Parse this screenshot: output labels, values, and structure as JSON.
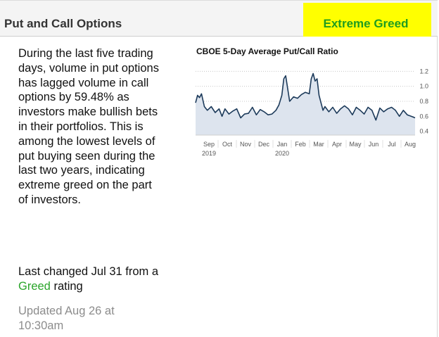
{
  "header": {
    "title": "Put and Call Options",
    "rating": "Extreme Greed",
    "rating_highlight_color": "#ffff00",
    "rating_text_color": "#1f9d1f"
  },
  "description": "During the last five trading days, volume in put options has lagged volume in call options by 59.48% as investors make bullish bets in their portfolios. This is among the lowest levels of put buying seen during the last two years, indicating extreme greed on the part of investors.",
  "last_changed": {
    "prefix": "Last changed Jul 31 from a ",
    "rating_word": "Greed",
    "suffix": " rating"
  },
  "updated": "Updated Aug 26 at 10:30am",
  "chart_data": {
    "type": "area",
    "title": "CBOE 5-Day Average Put/Call Ratio",
    "xlabel": "",
    "ylabel": "",
    "ylim": [
      0.35,
      1.25
    ],
    "yticks": [
      "1.2",
      "1.0",
      "0.8",
      "0.6",
      "0.4"
    ],
    "ytick_values": [
      1.2,
      1.0,
      0.8,
      0.6,
      0.4
    ],
    "xticks": [
      "Sep",
      "Oct",
      "Nov",
      "Dec",
      "Jan",
      "Feb",
      "Mar",
      "Apr",
      "May",
      "Jun",
      "Jul",
      "Aug"
    ],
    "year_labels": [
      {
        "label": "2019",
        "at": "Sep"
      },
      {
        "label": "2020",
        "at": "Jan"
      }
    ],
    "grid": true,
    "line_color": "#1c3a5a",
    "fill_color": "#dde4ee",
    "x": [
      0,
      0.1,
      0.2,
      0.3,
      0.45,
      0.6,
      0.8,
      1.0,
      1.2,
      1.35,
      1.5,
      1.7,
      1.9,
      2.1,
      2.3,
      2.5,
      2.7,
      2.9,
      3.1,
      3.3,
      3.5,
      3.7,
      3.9,
      4.1,
      4.25,
      4.4,
      4.5,
      4.6,
      4.8,
      5.0,
      5.2,
      5.4,
      5.6,
      5.8,
      5.9,
      6.0,
      6.1,
      6.2,
      6.3,
      6.5,
      6.6,
      6.8,
      7.0,
      7.2,
      7.4,
      7.6,
      7.8,
      8.0,
      8.2,
      8.4,
      8.6,
      8.8,
      9.0,
      9.2,
      9.4,
      9.6,
      9.8,
      10.0,
      10.2,
      10.4,
      10.6,
      10.8,
      11.0,
      11.2
    ],
    "values": [
      0.78,
      0.88,
      0.85,
      0.9,
      0.73,
      0.68,
      0.73,
      0.65,
      0.7,
      0.6,
      0.7,
      0.63,
      0.67,
      0.7,
      0.58,
      0.63,
      0.64,
      0.72,
      0.62,
      0.69,
      0.66,
      0.62,
      0.63,
      0.68,
      0.75,
      0.88,
      1.1,
      1.14,
      0.8,
      0.86,
      0.84,
      0.89,
      0.92,
      0.9,
      1.1,
      1.17,
      1.07,
      1.1,
      0.88,
      0.68,
      0.73,
      0.66,
      0.72,
      0.64,
      0.7,
      0.74,
      0.7,
      0.62,
      0.72,
      0.68,
      0.63,
      0.72,
      0.68,
      0.55,
      0.71,
      0.66,
      0.7,
      0.72,
      0.68,
      0.6,
      0.68,
      0.62,
      0.6,
      0.58
    ]
  }
}
